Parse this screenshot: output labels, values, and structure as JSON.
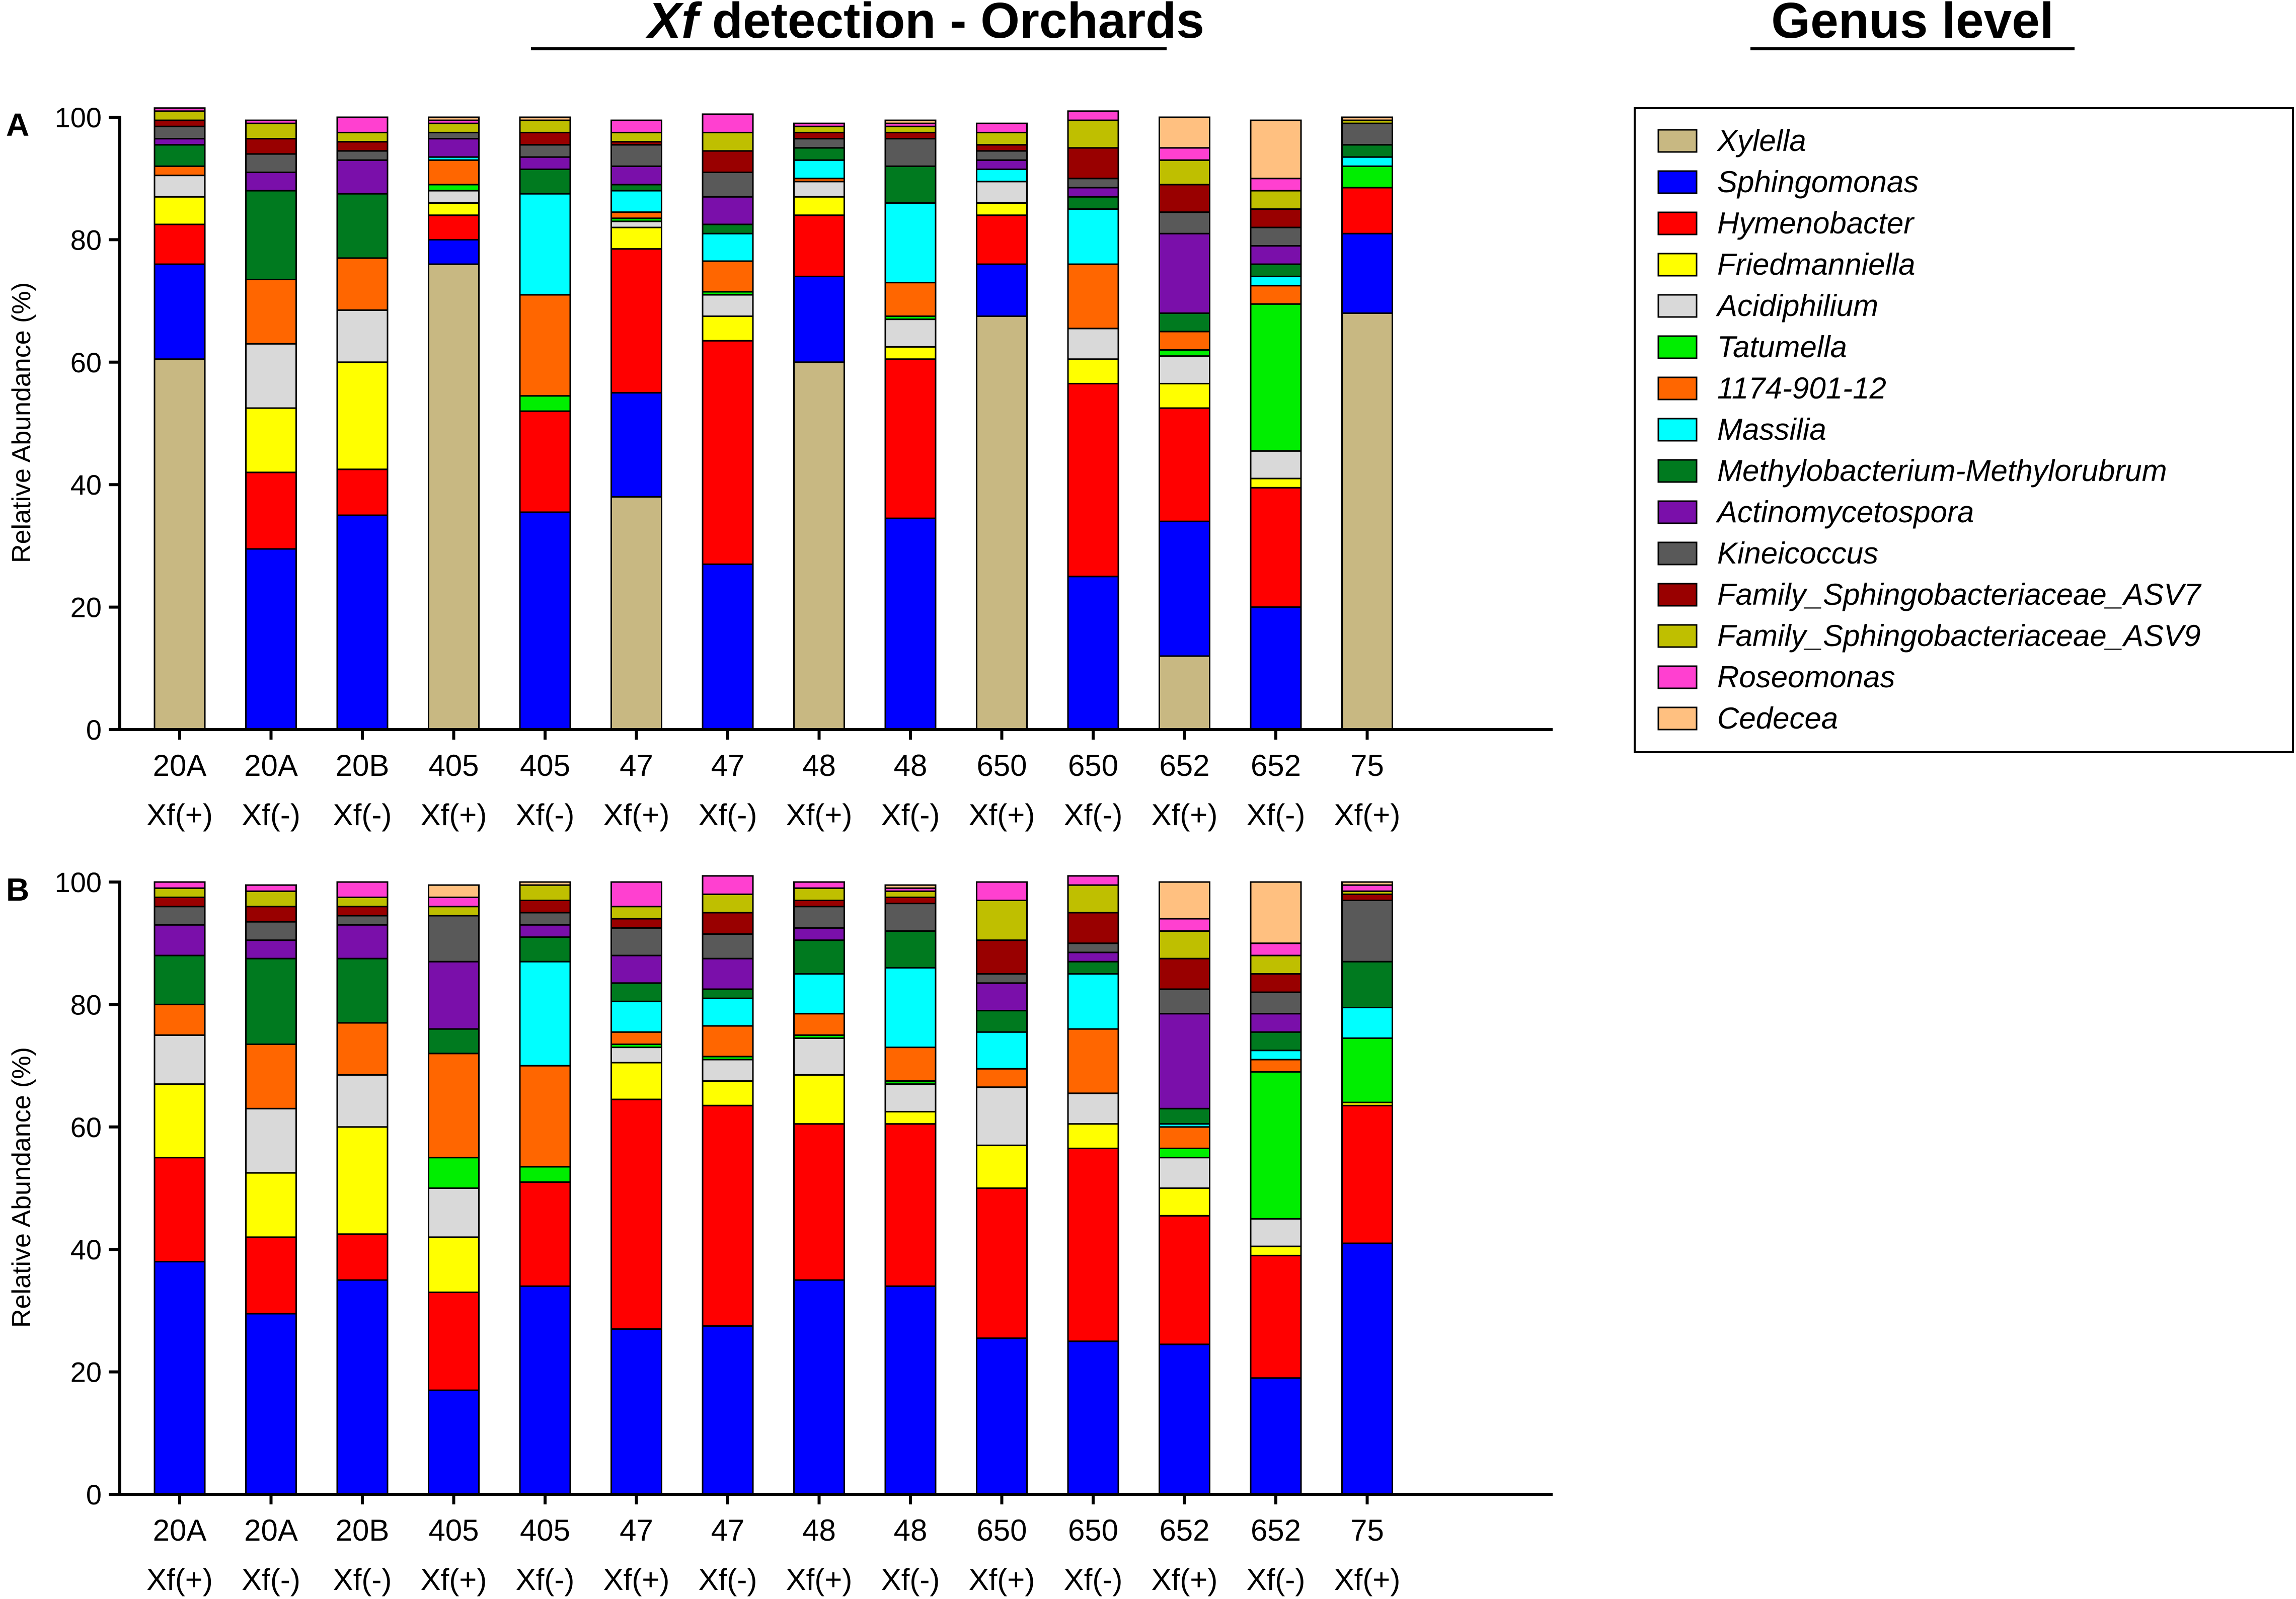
{
  "figure": {
    "title_italic": "Xf",
    "title_rest": " detection - Orchards",
    "genus_title": "Genus level"
  },
  "legend": {
    "items": [
      {
        "label": "Xylella",
        "color": "#C8B882"
      },
      {
        "label": "Sphingomonas",
        "color": "#0000FF"
      },
      {
        "label": "Hymenobacter",
        "color": "#FF0000"
      },
      {
        "label": "Friedmanniella",
        "color": "#FFFF00"
      },
      {
        "label": "Acidiphilium",
        "color": "#D9D9D9"
      },
      {
        "label": "Tatumella",
        "color": "#00EE00"
      },
      {
        "label": "1174-901-12",
        "color": "#FF6600"
      },
      {
        "label": "Massilia",
        "color": "#00FFFF"
      },
      {
        "label": "Methylobacterium-Methylorubrum",
        "color": "#007A1F"
      },
      {
        "label": "Actinomycetospora",
        "color": "#7A0FAA"
      },
      {
        "label": "Kineicoccus",
        "color": "#595959"
      },
      {
        "label": "Family_Sphingobacteriaceae_ASV7",
        "color": "#990000"
      },
      {
        "label": "Family_Sphingobacteriaceae_ASV9",
        "color": "#BFBF00"
      },
      {
        "label": "Roseomonas",
        "color": "#FF40D0"
      },
      {
        "label": "Cedecea",
        "color": "#FFC080"
      }
    ]
  },
  "chart_data": [
    {
      "type": "bar",
      "stacked": true,
      "panel": "A",
      "title": "",
      "xlabel": "",
      "ylabel": "Relative Abundance (%)",
      "ylim": [
        0,
        100
      ],
      "yticks": [
        "0",
        "20",
        "40",
        "60",
        "80",
        "100"
      ],
      "categories": [
        "20A",
        "20A",
        "20B",
        "405",
        "405",
        "47",
        "47",
        "48",
        "48",
        "650",
        "650",
        "652",
        "652",
        "75"
      ],
      "subcategories": [
        "Xf(+)",
        "Xf(-)",
        "Xf(-)",
        "Xf(+)",
        "Xf(-)",
        "Xf(+)",
        "Xf(-)",
        "Xf(+)",
        "Xf(-)",
        "Xf(+)",
        "Xf(-)",
        "Xf(+)",
        "Xf(-)",
        "Xf(+)"
      ],
      "series": [
        {
          "name": "Xylella",
          "values": [
            60.5,
            0,
            0,
            76,
            0,
            38,
            0,
            60,
            0,
            67.5,
            0,
            12,
            0,
            68
          ]
        },
        {
          "name": "Sphingomonas",
          "values": [
            15.5,
            29.5,
            35,
            4,
            35.5,
            17,
            27,
            14,
            34.5,
            8.5,
            25,
            22,
            20,
            13
          ]
        },
        {
          "name": "Hymenobacter",
          "values": [
            6.5,
            12.5,
            7.5,
            4,
            16.5,
            23.5,
            36.5,
            10,
            26,
            8,
            31.5,
            18.5,
            19.5,
            7.5
          ]
        },
        {
          "name": "Friedmanniella",
          "values": [
            4.5,
            10.5,
            17.5,
            2,
            0,
            3.5,
            4,
            3,
            2,
            2,
            4,
            4,
            1.5,
            0
          ]
        },
        {
          "name": "Acidiphilium",
          "values": [
            3.5,
            10.5,
            8.5,
            2,
            0,
            1,
            3.5,
            2.5,
            4.5,
            3.5,
            5,
            4.5,
            4.5,
            0
          ]
        },
        {
          "name": "Tatumella",
          "values": [
            0,
            0,
            0,
            1,
            2.5,
            0.5,
            0.5,
            0,
            0.5,
            0,
            0,
            1,
            24,
            3.5
          ]
        },
        {
          "name": "1174-901-12",
          "values": [
            1.5,
            10.5,
            8.5,
            4,
            16.5,
            1,
            5,
            0.5,
            5.5,
            0,
            10.5,
            3,
            3,
            0
          ]
        },
        {
          "name": "Massilia",
          "values": [
            0,
            0,
            0,
            0.5,
            16.5,
            3.5,
            4.5,
            3,
            13,
            2,
            9,
            0,
            1.5,
            1.5
          ]
        },
        {
          "name": "Methylobacterium-Methylorubrum",
          "values": [
            3.5,
            14.5,
            10.5,
            0,
            4,
            1,
            1.5,
            2,
            6,
            0,
            2,
            3,
            2,
            2
          ]
        },
        {
          "name": "Actinomycetospora",
          "values": [
            1,
            3,
            5.5,
            3,
            2,
            3,
            4.5,
            0,
            0,
            1.5,
            1.5,
            13,
            3,
            0
          ]
        },
        {
          "name": "Kineicoccus",
          "values": [
            2,
            3,
            1.5,
            1,
            2,
            3.5,
            4,
            1.5,
            4.5,
            1.5,
            1.5,
            3.5,
            3,
            3.5
          ]
        },
        {
          "name": "Family_Sphingobacteriaceae_ASV7",
          "values": [
            1,
            2.5,
            1.5,
            0,
            2,
            0.5,
            3.5,
            1,
            1,
            1,
            5,
            4.5,
            3,
            0
          ]
        },
        {
          "name": "Family_Sphingobacteriaceae_ASV9",
          "values": [
            1.5,
            2.5,
            1.5,
            1.5,
            2,
            1.5,
            3,
            1,
            1,
            2,
            4.5,
            4,
            3,
            0.5
          ]
        },
        {
          "name": "Roseomonas",
          "values": [
            0.5,
            0.5,
            2.5,
            0.5,
            0,
            2,
            3,
            0.5,
            0.5,
            1.5,
            1.5,
            2,
            2,
            0
          ]
        },
        {
          "name": "Cedecea",
          "values": [
            0,
            0,
            0,
            0.5,
            0.5,
            0,
            0,
            0,
            0.5,
            0,
            0,
            5,
            9.5,
            0.5
          ]
        }
      ]
    },
    {
      "type": "bar",
      "stacked": true,
      "panel": "B",
      "title": "",
      "xlabel": "",
      "ylabel": "Relative Abundance (%)",
      "ylim": [
        0,
        100
      ],
      "yticks": [
        "0",
        "20",
        "40",
        "60",
        "80",
        "100"
      ],
      "categories": [
        "20A",
        "20A",
        "20B",
        "405",
        "405",
        "47",
        "47",
        "48",
        "48",
        "650",
        "650",
        "652",
        "652",
        "75"
      ],
      "subcategories": [
        "Xf(+)",
        "Xf(-)",
        "Xf(-)",
        "Xf(+)",
        "Xf(-)",
        "Xf(+)",
        "Xf(-)",
        "Xf(+)",
        "Xf(-)",
        "Xf(+)",
        "Xf(-)",
        "Xf(+)",
        "Xf(-)",
        "Xf(+)"
      ],
      "series": [
        {
          "name": "Xylella",
          "values": [
            0,
            0,
            0,
            0,
            0,
            0,
            0,
            0,
            0,
            0,
            0,
            0,
            0,
            0
          ]
        },
        {
          "name": "Sphingomonas",
          "values": [
            38,
            29.5,
            35,
            17,
            34,
            27,
            27.5,
            35,
            34,
            25.5,
            25,
            24.5,
            19,
            41
          ]
        },
        {
          "name": "Hymenobacter",
          "values": [
            17,
            12.5,
            7.5,
            16,
            17,
            37.5,
            36,
            25.5,
            26.5,
            24.5,
            31.5,
            21,
            20,
            22.5
          ]
        },
        {
          "name": "Friedmanniella",
          "values": [
            12,
            10.5,
            17.5,
            9,
            0,
            6,
            4,
            8,
            2,
            7,
            4,
            4.5,
            1.5,
            0.5
          ]
        },
        {
          "name": "Acidiphilium",
          "values": [
            8,
            10.5,
            8.5,
            8,
            0,
            2.5,
            3.5,
            6,
            4.5,
            9.5,
            5,
            5,
            4.5,
            0
          ]
        },
        {
          "name": "Tatumella",
          "values": [
            0,
            0,
            0,
            5,
            2.5,
            0.5,
            0.5,
            0.5,
            0.5,
            0,
            0,
            1.5,
            24,
            10.5
          ]
        },
        {
          "name": "1174-901-12",
          "values": [
            5,
            10.5,
            8.5,
            17,
            16.5,
            2,
            5,
            3.5,
            5.5,
            3,
            10.5,
            3.5,
            2,
            0
          ]
        },
        {
          "name": "Massilia",
          "values": [
            0,
            0,
            0,
            0,
            17,
            5,
            4.5,
            6.5,
            13,
            6,
            9,
            0.5,
            1.5,
            5
          ]
        },
        {
          "name": "Methylobacterium-Methylorubrum",
          "values": [
            8,
            14,
            10.5,
            4,
            4,
            3,
            1.5,
            5.5,
            6,
            3.5,
            2,
            2.5,
            3,
            7.5
          ]
        },
        {
          "name": "Actinomycetospora",
          "values": [
            5,
            3,
            5.5,
            11,
            2,
            4.5,
            5,
            2,
            0,
            4.5,
            1.5,
            15.5,
            3,
            0
          ]
        },
        {
          "name": "Kineicoccus",
          "values": [
            3,
            3,
            1.5,
            7.5,
            2,
            4.5,
            4,
            3.5,
            4.5,
            1.5,
            1.5,
            4,
            3.5,
            10
          ]
        },
        {
          "name": "Family_Sphingobacteriaceae_ASV7",
          "values": [
            1.5,
            2.5,
            1.5,
            0,
            2,
            1.5,
            3.5,
            1,
            1,
            5.5,
            5,
            5,
            3,
            1
          ]
        },
        {
          "name": "Family_Sphingobacteriaceae_ASV9",
          "values": [
            1.5,
            2.5,
            1.5,
            1.5,
            2.5,
            2,
            3,
            2,
            1,
            6.5,
            4.5,
            4.5,
            3,
            0.5
          ]
        },
        {
          "name": "Roseomonas",
          "values": [
            1,
            1,
            2.5,
            1.5,
            0,
            4,
            3,
            1,
            0.5,
            3,
            1.5,
            2,
            2,
            1
          ]
        },
        {
          "name": "Cedecea",
          "values": [
            0,
            0,
            0,
            2,
            0.5,
            0,
            0,
            0,
            0.5,
            0,
            0,
            6,
            10,
            0.5
          ]
        }
      ]
    }
  ]
}
